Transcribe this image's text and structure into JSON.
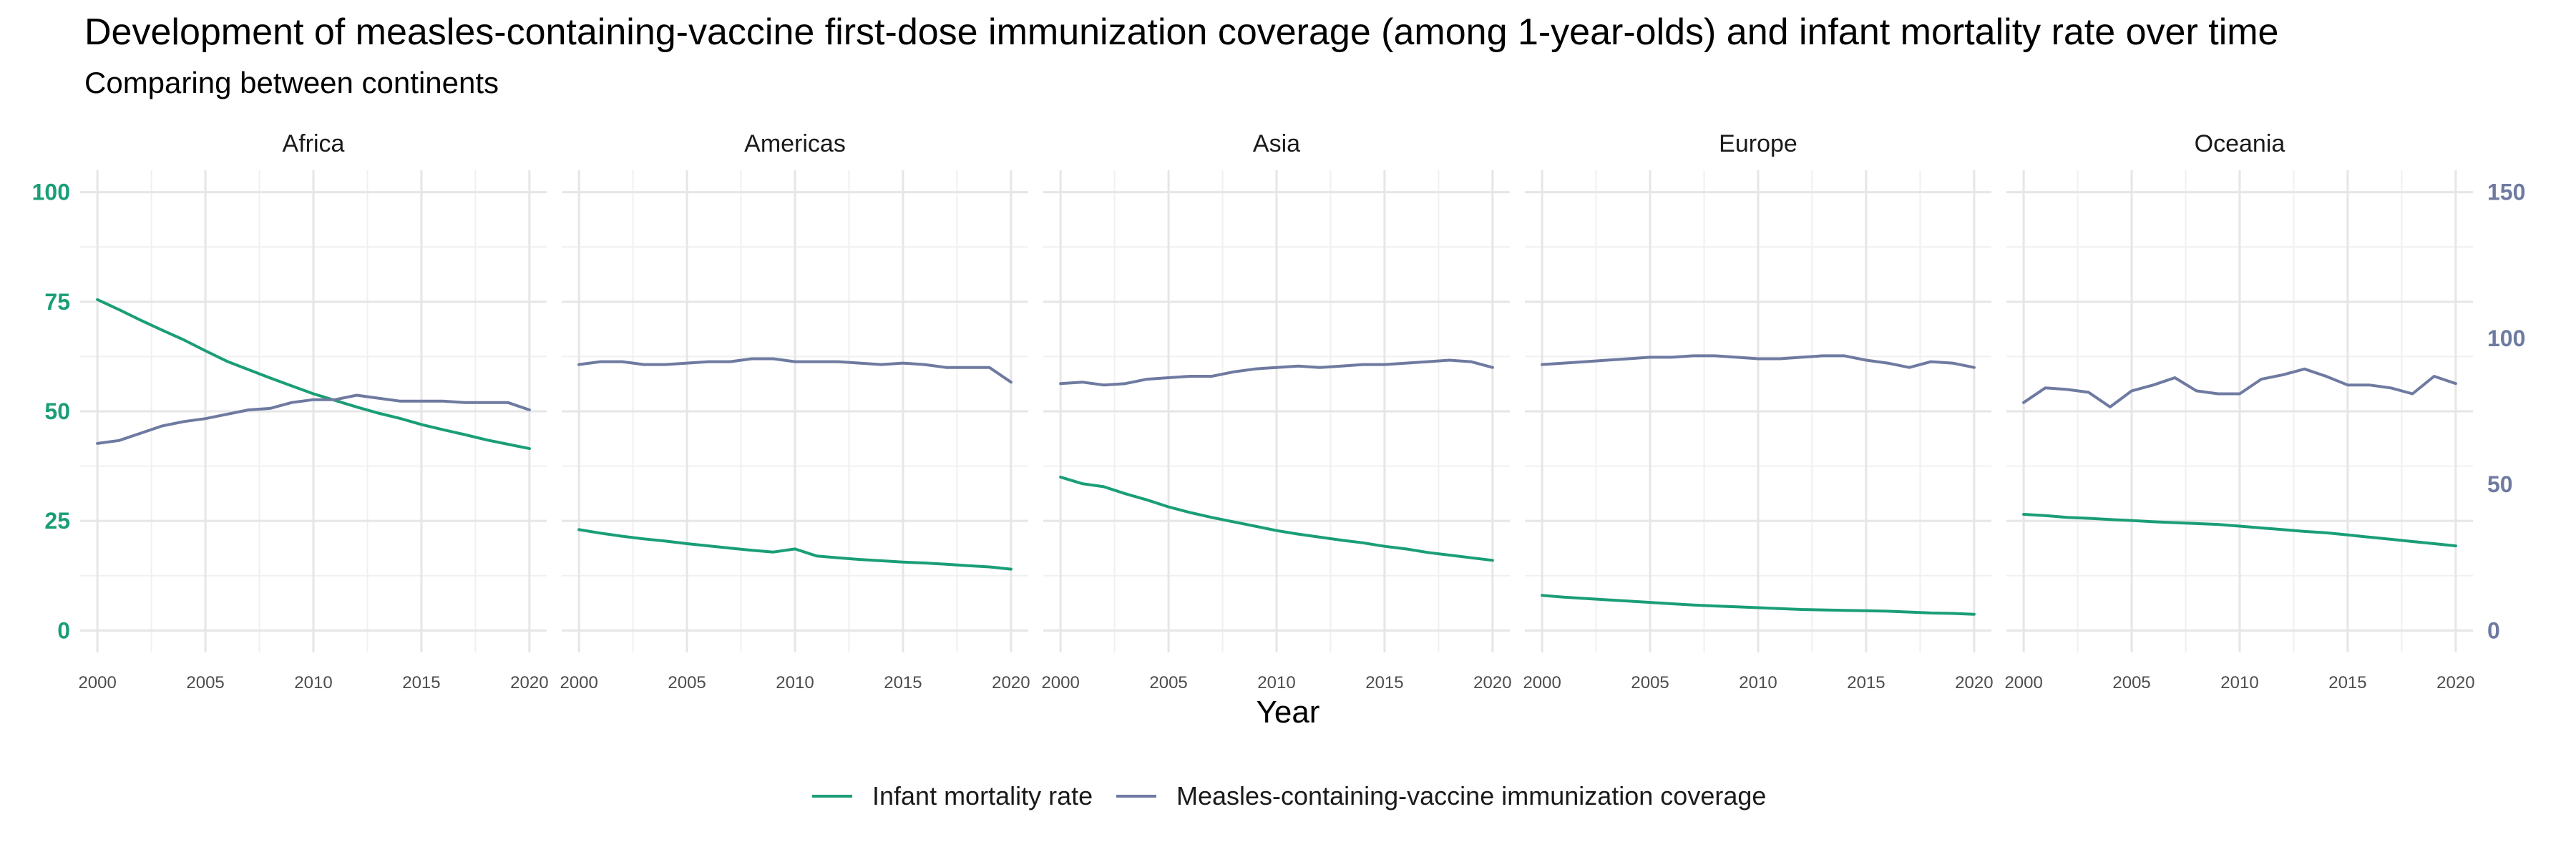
{
  "chart_data": {
    "type": "line",
    "title": "Development of measles-containing-vaccine first-dose immunization coverage (among 1-year-olds) and infant mortality rate over time",
    "subtitle": "Comparing between continents",
    "xlabel": "Year",
    "x_ticks": [
      2000,
      2005,
      2010,
      2015,
      2020
    ],
    "xlim": [
      1999.2,
      2020.8
    ],
    "y_left": {
      "ticks": [
        0,
        25,
        50,
        75,
        100
      ],
      "range": [
        -5,
        105
      ],
      "color": "#1a9e77"
    },
    "y_right": {
      "ticks": [
        0,
        50,
        100,
        150
      ],
      "range": [
        -7.5,
        157.5
      ],
      "color": "#6e7aa0"
    },
    "grid": true,
    "legend_position": "bottom",
    "series_meta": [
      {
        "name": "Infant mortality rate",
        "key": "imr",
        "color": "#1a9e77",
        "axis": "left"
      },
      {
        "name": "Measles-containing-vaccine immunization coverage",
        "key": "mcv",
        "color": "#6e7aa0",
        "axis": "right"
      }
    ],
    "x": [
      2000,
      2001,
      2002,
      2003,
      2004,
      2005,
      2006,
      2007,
      2008,
      2009,
      2010,
      2011,
      2012,
      2013,
      2014,
      2015,
      2016,
      2017,
      2018,
      2019,
      2020
    ],
    "panels": [
      {
        "label": "Africa",
        "imr": [
          75.5,
          73.2,
          70.8,
          68.5,
          66.3,
          63.8,
          61.4,
          59.5,
          57.6,
          55.8,
          54.0,
          52.5,
          51.0,
          49.6,
          48.4,
          47.0,
          45.8,
          44.7,
          43.5,
          42.5,
          41.5
        ],
        "mcv": [
          64,
          65,
          67.5,
          70,
          71.5,
          72.5,
          74,
          75.5,
          76,
          78,
          79,
          79,
          80.5,
          79.5,
          78.5,
          78.5,
          78.5,
          78,
          78,
          78,
          75.5
        ]
      },
      {
        "label": "Americas",
        "imr": [
          23.0,
          22.2,
          21.5,
          20.9,
          20.4,
          19.8,
          19.3,
          18.8,
          18.3,
          17.9,
          18.6,
          17.0,
          16.6,
          16.2,
          15.9,
          15.6,
          15.4,
          15.1,
          14.8,
          14.5,
          14.0
        ],
        "mcv": [
          91,
          92,
          92,
          91,
          91,
          91.5,
          92,
          92,
          93,
          93,
          92,
          92,
          92,
          91.5,
          91,
          91.5,
          91,
          90,
          90,
          90,
          85
        ]
      },
      {
        "label": "Asia",
        "imr": [
          35.0,
          33.5,
          32.8,
          31.2,
          29.8,
          28.2,
          26.9,
          25.8,
          24.8,
          23.8,
          22.8,
          22.0,
          21.3,
          20.6,
          20.0,
          19.2,
          18.6,
          17.8,
          17.2,
          16.6,
          16.0
        ],
        "mcv": [
          84.5,
          85,
          84,
          84.5,
          86,
          86.5,
          87,
          87,
          88.5,
          89.5,
          90,
          90.5,
          90,
          90.5,
          91,
          91,
          91.5,
          92,
          92.5,
          92,
          90
        ]
      },
      {
        "label": "Europe",
        "imr": [
          8.0,
          7.6,
          7.3,
          7.0,
          6.7,
          6.4,
          6.1,
          5.8,
          5.6,
          5.4,
          5.2,
          5.0,
          4.8,
          4.7,
          4.6,
          4.5,
          4.4,
          4.2,
          4.0,
          3.9,
          3.7
        ],
        "mcv": [
          91,
          91.5,
          92,
          92.5,
          93,
          93.5,
          93.5,
          94,
          94,
          93.5,
          93,
          93,
          93.5,
          94,
          94,
          92.5,
          91.5,
          90,
          92,
          91.5,
          90
        ]
      },
      {
        "label": "Oceania",
        "imr": [
          26.5,
          26.2,
          25.8,
          25.6,
          25.3,
          25.1,
          24.8,
          24.6,
          24.4,
          24.2,
          23.8,
          23.4,
          23.0,
          22.6,
          22.3,
          21.8,
          21.3,
          20.8,
          20.3,
          19.8,
          19.3
        ],
        "mcv": [
          78,
          83,
          82.5,
          81.5,
          76.5,
          82,
          84,
          86.5,
          82,
          81,
          81,
          86,
          87.5,
          89.5,
          87,
          84,
          84,
          83,
          81,
          87,
          84.5
        ]
      }
    ]
  }
}
